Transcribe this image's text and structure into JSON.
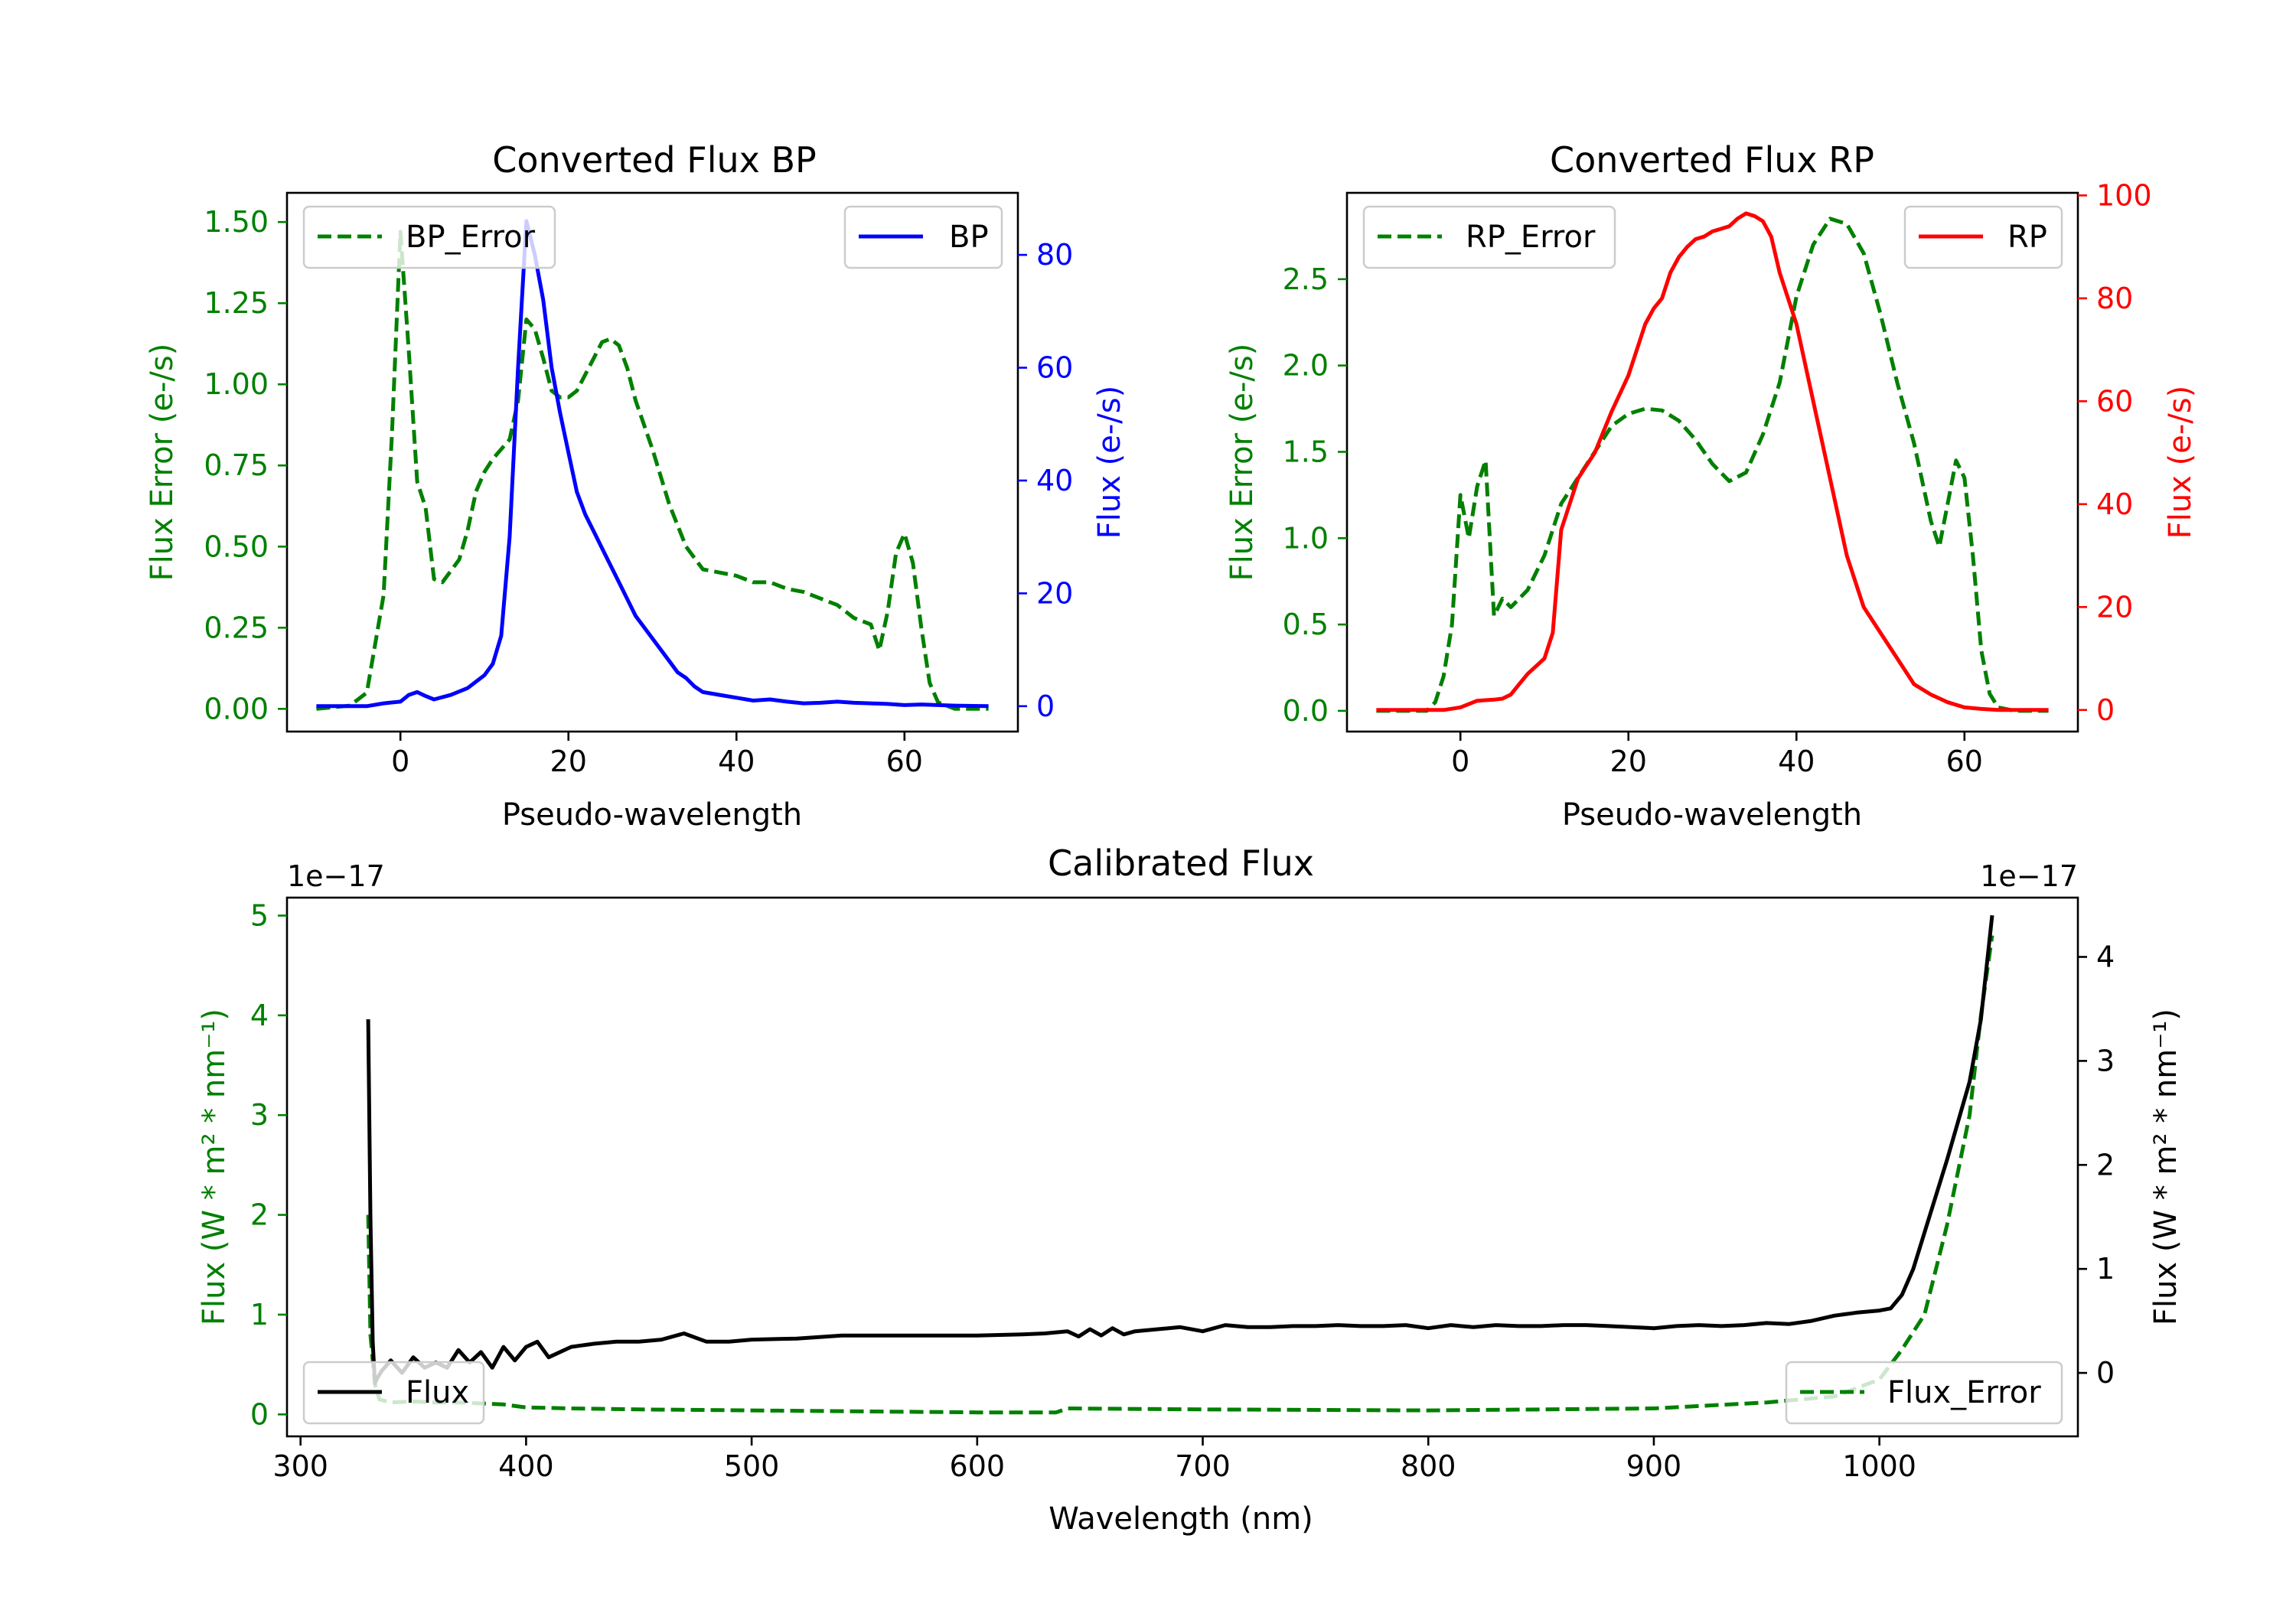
{
  "chart_data": [
    {
      "type": "line",
      "id": "bp",
      "title": "Converted Flux BP",
      "xlabel": "Pseudo-wavelength",
      "xlim": [
        -13.5,
        73.5
      ],
      "xticks": [
        0,
        20,
        40,
        60
      ],
      "left_axis": {
        "label": "Flux Error (e-/s)",
        "color": "#008000",
        "ylim": [
          -0.07,
          1.59
        ],
        "ticks": [
          "0.00",
          "0.25",
          "0.50",
          "0.75",
          "1.00",
          "1.25",
          "1.50"
        ]
      },
      "right_axis": {
        "label": "Flux (e-/s)",
        "color": "#0000ff",
        "ylim": [
          -4.5,
          91
        ],
        "ticks": [
          "0",
          "20",
          "40",
          "60",
          "80"
        ]
      },
      "series": [
        {
          "name": "BP_Error",
          "axis": "left",
          "color": "#008000",
          "dash": true,
          "x": [
            -10,
            -6,
            -4,
            -2,
            -1,
            0,
            1,
            2,
            3,
            4,
            5,
            7,
            8,
            9,
            10,
            11,
            13,
            14,
            15,
            16,
            17,
            18,
            19,
            20,
            21,
            22,
            23,
            24,
            25,
            26,
            27,
            28,
            30,
            32,
            34,
            36,
            38,
            40,
            42,
            44,
            46,
            48,
            50,
            52,
            54,
            55,
            56,
            57,
            58,
            59,
            60,
            61,
            62,
            63,
            64,
            66,
            70
          ],
          "values": [
            0.0,
            0.01,
            0.05,
            0.35,
            0.85,
            1.47,
            1.1,
            0.7,
            0.62,
            0.4,
            0.39,
            0.46,
            0.55,
            0.67,
            0.73,
            0.77,
            0.83,
            0.95,
            1.2,
            1.17,
            1.08,
            0.98,
            0.96,
            0.96,
            0.98,
            1.03,
            1.08,
            1.13,
            1.14,
            1.12,
            1.05,
            0.95,
            0.8,
            0.63,
            0.5,
            0.43,
            0.42,
            0.41,
            0.39,
            0.39,
            0.37,
            0.36,
            0.34,
            0.32,
            0.28,
            0.27,
            0.26,
            0.18,
            0.3,
            0.48,
            0.54,
            0.45,
            0.25,
            0.08,
            0.02,
            0.0,
            0.0
          ]
        },
        {
          "name": "BP",
          "axis": "right",
          "color": "#0000ff",
          "dash": false,
          "x": [
            -10,
            -4,
            -2,
            0,
            1,
            2,
            3,
            4,
            6,
            8,
            10,
            11,
            12,
            13,
            14,
            15,
            16,
            17,
            18,
            19,
            20,
            21,
            22,
            23,
            24,
            25,
            26,
            27,
            28,
            30,
            32,
            33,
            34,
            35,
            36,
            38,
            40,
            42,
            44,
            46,
            48,
            50,
            52,
            54,
            56,
            58,
            60,
            62,
            64,
            66,
            70
          ],
          "values": [
            0,
            0,
            0.5,
            0.8,
            2,
            2.5,
            1.8,
            1.2,
            2,
            3.2,
            5.5,
            7.5,
            12.5,
            30,
            60,
            86,
            80,
            72,
            60,
            52,
            45,
            38,
            34,
            31,
            28,
            25,
            22,
            19,
            16,
            12,
            8,
            6,
            5,
            3.5,
            2.5,
            2,
            1.5,
            1,
            1.2,
            0.8,
            0.5,
            0.6,
            0.8,
            0.6,
            0.5,
            0.4,
            0.2,
            0.3,
            0.2,
            0.1,
            0
          ]
        }
      ],
      "legends": [
        {
          "position": "upper left",
          "entries": [
            "BP_Error"
          ]
        },
        {
          "position": "upper right",
          "entries": [
            "BP"
          ]
        }
      ]
    },
    {
      "type": "line",
      "id": "rp",
      "title": "Converted Flux RP",
      "xlabel": "Pseudo-wavelength",
      "xlim": [
        -13.5,
        73.5
      ],
      "xticks": [
        0,
        20,
        40,
        60
      ],
      "left_axis": {
        "label": "Flux Error (e-/s)",
        "color": "#008000",
        "ylim": [
          -0.12,
          3.0
        ],
        "ticks": [
          "0.0",
          "0.5",
          "1.0",
          "1.5",
          "2.0",
          "2.5"
        ]
      },
      "right_axis": {
        "label": "Flux (e-/s)",
        "color": "#ff0000",
        "ylim": [
          -4.2,
          100.5
        ],
        "ticks": [
          "0",
          "20",
          "40",
          "60",
          "80",
          "100"
        ]
      },
      "series": [
        {
          "name": "RP_Error",
          "axis": "left",
          "color": "#008000",
          "dash": true,
          "x": [
            -10,
            -4,
            -3,
            -2,
            -1,
            0,
            1,
            2,
            3,
            4,
            5,
            6,
            8,
            10,
            12,
            14,
            16,
            18,
            20,
            22,
            24,
            26,
            28,
            30,
            32,
            34,
            36,
            38,
            40,
            42,
            44,
            46,
            48,
            50,
            52,
            54,
            56,
            57,
            58,
            59,
            60,
            61,
            62,
            63,
            64,
            66,
            70
          ],
          "values": [
            0,
            0,
            0.05,
            0.2,
            0.5,
            1.25,
            1.0,
            1.3,
            1.45,
            0.55,
            0.65,
            0.6,
            0.7,
            0.9,
            1.2,
            1.35,
            1.5,
            1.65,
            1.72,
            1.75,
            1.74,
            1.68,
            1.57,
            1.43,
            1.33,
            1.38,
            1.6,
            1.9,
            2.4,
            2.7,
            2.85,
            2.82,
            2.65,
            2.3,
            1.9,
            1.55,
            1.1,
            0.95,
            1.2,
            1.45,
            1.35,
            0.9,
            0.35,
            0.1,
            0.02,
            0,
            0
          ]
        },
        {
          "name": "RP",
          "axis": "right",
          "color": "#ff0000",
          "dash": false,
          "x": [
            -10,
            -2,
            0,
            2,
            4,
            5,
            6,
            7,
            8,
            10,
            11,
            12,
            14,
            16,
            18,
            20,
            21,
            22,
            23,
            24,
            25,
            26,
            27,
            28,
            29,
            30,
            31,
            32,
            33,
            34,
            35,
            36,
            37,
            38,
            40,
            42,
            44,
            46,
            48,
            50,
            52,
            54,
            56,
            58,
            60,
            62,
            64,
            66,
            70
          ],
          "values": [
            0,
            0,
            0.5,
            1.8,
            2,
            2.2,
            3,
            5,
            7,
            10,
            15,
            35,
            45,
            50,
            58,
            65,
            70,
            75,
            78,
            80,
            85,
            88,
            90,
            91.5,
            92,
            93,
            93.5,
            94,
            95.5,
            96.5,
            96,
            95,
            92,
            85,
            75,
            60,
            45,
            30,
            20,
            15,
            10,
            5,
            3,
            1.5,
            0.5,
            0.2,
            0,
            0,
            0
          ]
        }
      ],
      "legends": [
        {
          "position": "upper left",
          "entries": [
            "RP_Error"
          ]
        },
        {
          "position": "upper right",
          "entries": [
            "RP"
          ]
        }
      ]
    },
    {
      "type": "line",
      "id": "cal",
      "title": "Calibrated Flux",
      "xlabel": "Wavelength (nm)",
      "xlim": [
        294,
        1088
      ],
      "xticks": [
        300,
        400,
        500,
        600,
        700,
        800,
        900,
        1000
      ],
      "left_axis": {
        "label": "Flux (W * m² * nm⁻¹)",
        "color": "#008000",
        "exponent": "1e−17",
        "ylim": [
          -0.22,
          5.18
        ],
        "ticks": [
          "0",
          "1",
          "2",
          "3",
          "4",
          "5"
        ]
      },
      "right_axis": {
        "label": "Flux (W * m² * nm⁻¹)",
        "color": "#000000",
        "exponent": "1e−17",
        "ylim": [
          -0.61,
          4.57
        ],
        "ticks": [
          "0",
          "1",
          "2",
          "3",
          "4"
        ]
      },
      "series": [
        {
          "name": "Flux_Error",
          "axis": "left",
          "color": "#008000",
          "dash": true,
          "x": [
            330,
            331,
            333,
            335,
            340,
            350,
            360,
            370,
            380,
            390,
            400,
            420,
            450,
            500,
            550,
            600,
            635,
            640,
            700,
            800,
            900,
            950,
            980,
            1000,
            1010,
            1020,
            1030,
            1040,
            1045,
            1050
          ],
          "values": [
            2.0,
            0.8,
            0.3,
            0.15,
            0.12,
            0.13,
            0.12,
            0.12,
            0.11,
            0.1,
            0.07,
            0.06,
            0.05,
            0.04,
            0.03,
            0.02,
            0.02,
            0.06,
            0.05,
            0.04,
            0.06,
            0.12,
            0.18,
            0.35,
            0.65,
            1.0,
            1.9,
            3.0,
            4.0,
            4.8
          ]
        },
        {
          "name": "Flux",
          "axis": "right",
          "color": "#000000",
          "dash": false,
          "x": [
            330,
            331,
            332,
            333,
            334,
            336,
            340,
            345,
            350,
            355,
            360,
            365,
            370,
            375,
            380,
            385,
            390,
            395,
            400,
            405,
            410,
            420,
            430,
            440,
            450,
            460,
            470,
            480,
            490,
            500,
            520,
            540,
            560,
            580,
            600,
            620,
            630,
            640,
            645,
            650,
            655,
            660,
            665,
            670,
            680,
            690,
            700,
            710,
            720,
            730,
            740,
            750,
            760,
            770,
            780,
            790,
            800,
            810,
            820,
            830,
            840,
            850,
            860,
            870,
            880,
            890,
            900,
            910,
            920,
            930,
            940,
            950,
            960,
            970,
            980,
            990,
            1000,
            1005,
            1010,
            1015,
            1020,
            1030,
            1040,
            1045,
            1050
          ],
          "values": [
            3.4,
            1.5,
            0.3,
            -0.1,
            -0.05,
            0.02,
            0.12,
            0.0,
            0.15,
            0.05,
            0.1,
            0.05,
            0.22,
            0.1,
            0.2,
            0.05,
            0.25,
            0.12,
            0.25,
            0.3,
            0.15,
            0.25,
            0.28,
            0.3,
            0.3,
            0.32,
            0.38,
            0.3,
            0.3,
            0.32,
            0.33,
            0.36,
            0.36,
            0.36,
            0.36,
            0.37,
            0.38,
            0.4,
            0.35,
            0.42,
            0.36,
            0.43,
            0.37,
            0.4,
            0.42,
            0.44,
            0.4,
            0.46,
            0.44,
            0.44,
            0.45,
            0.45,
            0.46,
            0.45,
            0.45,
            0.46,
            0.43,
            0.46,
            0.44,
            0.46,
            0.45,
            0.45,
            0.46,
            0.46,
            0.45,
            0.44,
            0.43,
            0.45,
            0.46,
            0.45,
            0.46,
            0.48,
            0.47,
            0.5,
            0.55,
            0.58,
            0.6,
            0.62,
            0.75,
            1.0,
            1.35,
            2.05,
            2.8,
            3.4,
            4.4
          ]
        }
      ],
      "legends": [
        {
          "position": "lower left",
          "entries": [
            "Flux"
          ]
        },
        {
          "position": "lower right",
          "entries": [
            "Flux_Error"
          ]
        }
      ]
    }
  ]
}
